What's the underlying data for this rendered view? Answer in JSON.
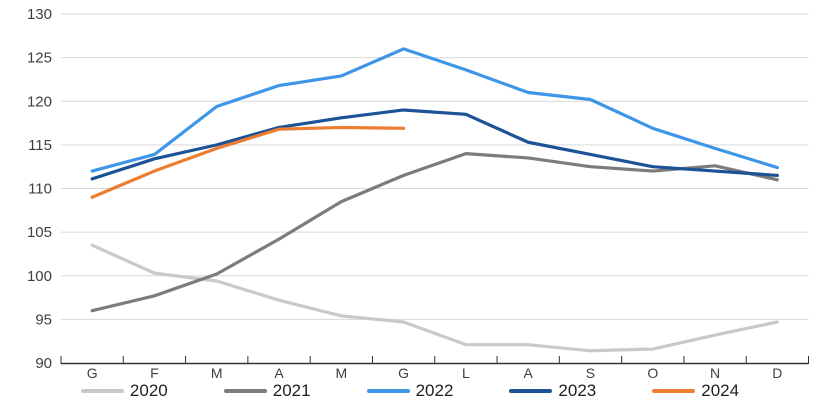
{
  "chart_data": {
    "type": "line",
    "title": "",
    "xlabel": "",
    "ylabel": "",
    "x_categories": [
      "G",
      "F",
      "M",
      "A",
      "M",
      "G",
      "L",
      "A",
      "S",
      "O",
      "N",
      "D"
    ],
    "y_ticks": [
      90,
      95,
      100,
      105,
      110,
      115,
      120,
      125,
      130
    ],
    "ylim": [
      90,
      130
    ],
    "grid": true,
    "legend_position": "bottom",
    "series": [
      {
        "name": "2020",
        "color": "#C9C9C9",
        "values": [
          103.5,
          100.3,
          99.4,
          97.2,
          95.4,
          94.7,
          92.1,
          92.1,
          91.4,
          91.6,
          93.2,
          94.7
        ]
      },
      {
        "name": "2021",
        "color": "#7C7C7C",
        "values": [
          96.0,
          97.7,
          100.2,
          104.2,
          108.5,
          111.5,
          114.0,
          113.5,
          112.5,
          112.0,
          112.6,
          111.0
        ]
      },
      {
        "name": "2022",
        "color": "#3E96E8",
        "values": [
          112.0,
          113.9,
          119.4,
          121.8,
          122.9,
          126.0,
          123.6,
          121.0,
          120.2,
          116.9,
          114.6,
          112.4
        ]
      },
      {
        "name": "2023",
        "color": "#1C5296",
        "values": [
          111.1,
          113.4,
          115.0,
          117.0,
          118.1,
          119.0,
          118.5,
          115.3,
          113.9,
          112.5,
          112.0,
          111.5
        ]
      },
      {
        "name": "2024",
        "color": "#ED7D31",
        "values": [
          109.0,
          112.0,
          114.6,
          116.8,
          117.0,
          116.9,
          null,
          null,
          null,
          null,
          null,
          null
        ]
      }
    ]
  },
  "colors": {
    "background": "#FFFFFF",
    "gridline": "#D9D9D9",
    "axis_line": "#333333",
    "axis_text": "#3F3F3F",
    "legend_text": "#1F1F1F"
  }
}
